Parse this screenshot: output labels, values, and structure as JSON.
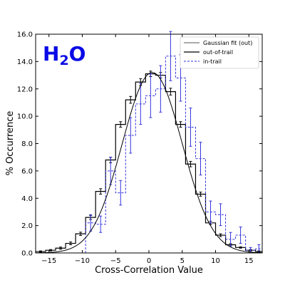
{
  "chart_data": {
    "type": "bar",
    "title": "",
    "annotation": {
      "base": "H",
      "subscript": "2",
      "suffix": "O",
      "color": "#0a0ae6"
    },
    "xlabel": "Cross-Correlation Value",
    "ylabel": "% Occurrence",
    "xlim": [
      -17,
      17
    ],
    "ylim": [
      0,
      16
    ],
    "xticks": [
      -15,
      -10,
      -5,
      0,
      5,
      10,
      15
    ],
    "yticks": [
      0,
      2,
      4,
      6,
      8,
      10,
      12,
      14,
      16
    ],
    "ytick_labels": [
      "0.0",
      "2.0",
      "4.0",
      "6.0",
      "8.0",
      "10.0",
      "12.0",
      "14.0",
      "16.0"
    ],
    "bin_edges": [
      -17,
      -15.5,
      -14,
      -12.5,
      -11,
      -9.5,
      -8,
      -6.5,
      -5,
      -3.5,
      -2,
      -0.5,
      1,
      2.5,
      4,
      5.5,
      7,
      8.5,
      10,
      11.5,
      13,
      14.5,
      16,
      17
    ],
    "legend": {
      "placement": "top-right",
      "entries": [
        "Gaussian fit (out)",
        "out-of-trail",
        "in-trail"
      ]
    },
    "series": [
      {
        "name": "out-of-trail",
        "style": "solid-step",
        "color": "#000000",
        "values": [
          0.1,
          0.2,
          0.35,
          0.7,
          1.4,
          2.6,
          4.5,
          6.8,
          9.4,
          11.2,
          12.5,
          13.1,
          13.0,
          11.8,
          9.4,
          6.5,
          4.3,
          2.2,
          1.3,
          0.6,
          0.4,
          0.2,
          0.1
        ],
        "errors": [
          0.05,
          0.05,
          0.08,
          0.1,
          0.12,
          0.15,
          0.2,
          0.2,
          0.2,
          0.25,
          0.25,
          0.2,
          0.2,
          0.25,
          0.2,
          0.2,
          0.15,
          0.12,
          0.1,
          0.08,
          0.05,
          0.05,
          0.05
        ]
      },
      {
        "name": "in-trail",
        "style": "dashed-step",
        "color": "#3333dd",
        "values": [
          0.0,
          0.0,
          0.0,
          0.0,
          0.0,
          2.2,
          2.1,
          6.0,
          4.4,
          8.6,
          10.9,
          11.5,
          12.0,
          14.4,
          12.8,
          9.2,
          6.9,
          3.0,
          2.8,
          1.0,
          1.3,
          0.2,
          0.3
        ],
        "errors": [
          0,
          0,
          0,
          0,
          0,
          0.6,
          0.6,
          1.0,
          0.9,
          1.3,
          1.5,
          1.6,
          1.7,
          1.8,
          1.7,
          1.4,
          1.2,
          0.8,
          0.8,
          0.5,
          0.6,
          0.2,
          0.3
        ]
      },
      {
        "name": "Gaussian fit (out)",
        "style": "curve",
        "color": "#000000",
        "amplitude": 13.2,
        "mean": 0.5,
        "sigma": 4.5
      }
    ]
  }
}
